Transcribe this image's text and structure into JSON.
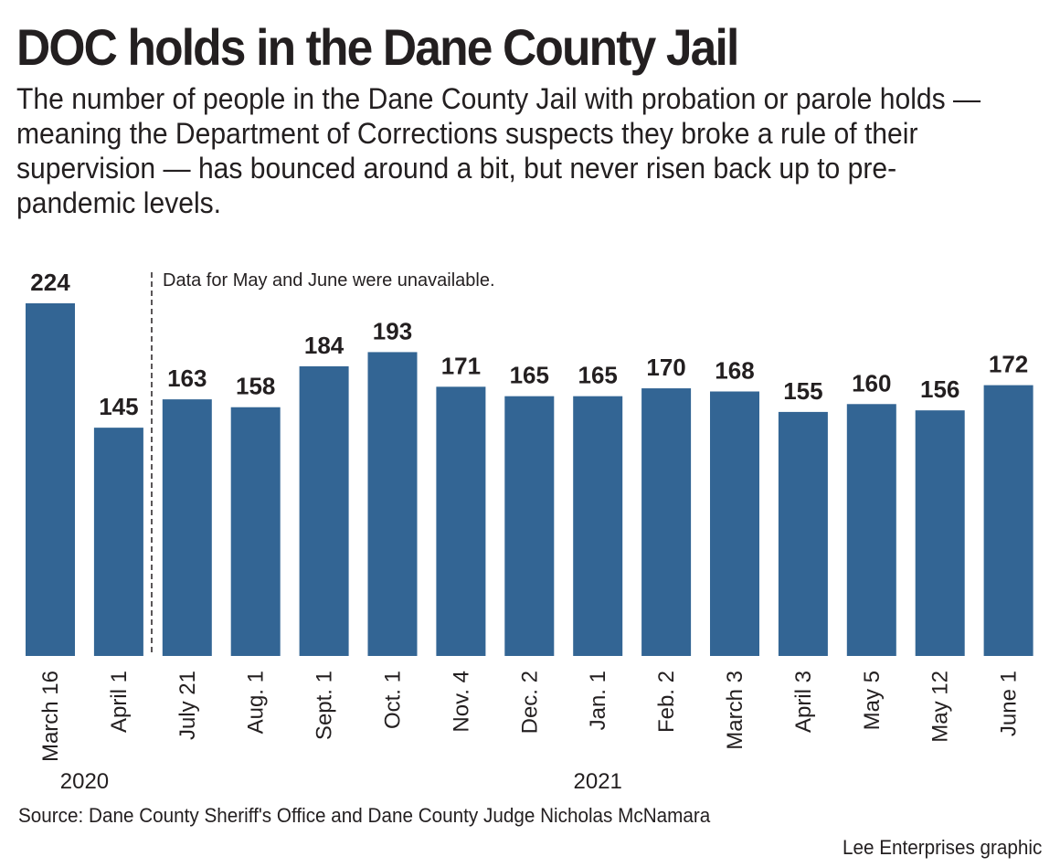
{
  "title": "DOC holds in the Dane County Jail",
  "subtitle": "The number of people in the Dane County Jail with probation or parole holds — meaning the Department of Corrections suspects they broke a rule of their supervision — has bounced around a bit, but never risen back up to pre-pandemic levels.",
  "source": "Source: Dane County Sheriff's Office and Dane County Judge Nicholas McNamara",
  "credit": "Lee Enterprises graphic",
  "chart_data": {
    "type": "bar",
    "categories": [
      "March 16",
      "April 1",
      "July 21",
      "Aug. 1",
      "Sept. 1",
      "Oct. 1",
      "Nov. 4",
      "Dec. 2",
      "Jan. 1",
      "Feb. 2",
      "March 3",
      "April 3",
      "May 5",
      "May 12",
      "June 1"
    ],
    "values": [
      224,
      145,
      163,
      158,
      184,
      193,
      171,
      165,
      165,
      170,
      168,
      155,
      160,
      156,
      172
    ],
    "years": [
      {
        "label": "2020",
        "start": 0,
        "end": 1
      },
      {
        "label": "2021",
        "start": 2,
        "end": 14
      }
    ],
    "annotation": "Data for May and June were unavailable.",
    "bar_color": "#336594",
    "ylim": [
      0,
      224
    ],
    "grid": false,
    "legend": "none"
  }
}
